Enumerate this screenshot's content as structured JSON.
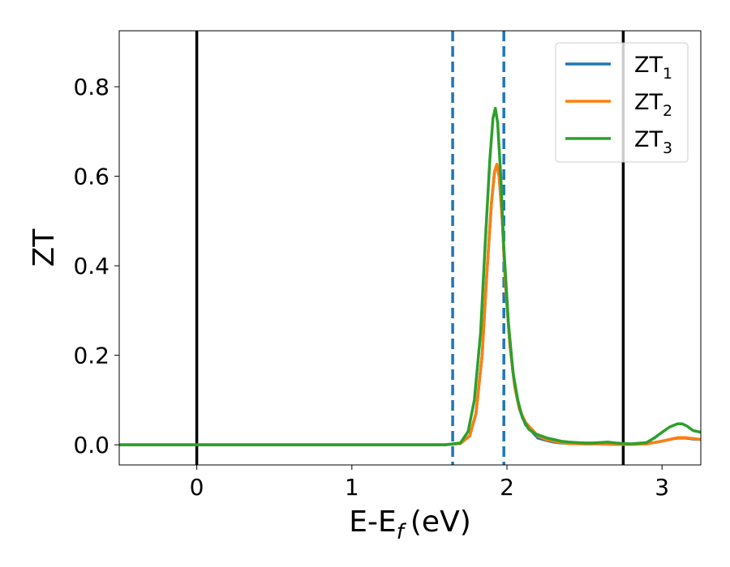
{
  "chart_data": {
    "type": "line",
    "title": "",
    "xlabel": "E-E",
    "xlabel_sub": "f",
    "xlabel_unit": "(eV)",
    "ylabel": "ZT",
    "xlim": [
      -0.5,
      3.25
    ],
    "ylim": [
      -0.045,
      0.925
    ],
    "xticks": [
      0,
      1,
      2,
      3
    ],
    "xtick_labels": [
      "0",
      "1",
      "2",
      "3"
    ],
    "yticks": [
      0.0,
      0.2,
      0.4,
      0.6,
      0.8
    ],
    "ytick_labels": [
      "0.0",
      "0.2",
      "0.4",
      "0.6",
      "0.8"
    ],
    "grid": false,
    "legend_position": "top-right",
    "vlines": [
      {
        "x": 0.0,
        "color": "#000000",
        "style": "solid"
      },
      {
        "x": 2.75,
        "color": "#000000",
        "style": "solid"
      },
      {
        "x": 1.65,
        "color": "#1f77b4",
        "style": "dashed"
      },
      {
        "x": 1.98,
        "color": "#1f77b4",
        "style": "dashed"
      }
    ],
    "series": [
      {
        "name": "ZT",
        "sub": "1",
        "color": "#1f77b4",
        "x": [
          -0.5,
          1.6,
          1.7,
          1.76,
          1.8,
          1.84,
          1.87,
          1.9,
          1.92,
          1.935,
          1.95,
          1.97,
          1.99,
          2.02,
          2.05,
          2.08,
          2.12,
          2.16,
          2.2,
          2.25,
          2.3,
          2.35,
          2.4,
          2.5,
          2.6,
          2.7,
          2.8,
          2.9,
          3.0,
          3.05,
          3.1,
          3.15,
          3.2,
          3.25
        ],
        "y": [
          0.0,
          0.0,
          0.003,
          0.02,
          0.07,
          0.2,
          0.38,
          0.54,
          0.61,
          0.625,
          0.6,
          0.5,
          0.36,
          0.22,
          0.13,
          0.08,
          0.045,
          0.03,
          0.015,
          0.01,
          0.006,
          0.004,
          0.003,
          0.002,
          0.002,
          0.001,
          0.001,
          0.002,
          0.008,
          0.012,
          0.015,
          0.015,
          0.013,
          0.012
        ]
      },
      {
        "name": "ZT",
        "sub": "2",
        "color": "#ff7f0e",
        "x": [
          -0.5,
          1.6,
          1.7,
          1.76,
          1.8,
          1.84,
          1.87,
          1.9,
          1.92,
          1.935,
          1.95,
          1.97,
          1.99,
          2.02,
          2.05,
          2.08,
          2.12,
          2.16,
          2.2,
          2.25,
          2.3,
          2.35,
          2.4,
          2.5,
          2.6,
          2.7,
          2.8,
          2.9,
          3.0,
          3.05,
          3.1,
          3.15,
          3.2,
          3.25
        ],
        "y": [
          0.0,
          0.0,
          0.003,
          0.02,
          0.07,
          0.2,
          0.38,
          0.54,
          0.61,
          0.627,
          0.6,
          0.5,
          0.36,
          0.22,
          0.13,
          0.08,
          0.05,
          0.035,
          0.02,
          0.012,
          0.008,
          0.005,
          0.003,
          0.002,
          0.002,
          0.001,
          0.001,
          0.002,
          0.008,
          0.012,
          0.016,
          0.016,
          0.014,
          0.012
        ]
      },
      {
        "name": "ZT",
        "sub": "3",
        "color": "#2ca02c",
        "x": [
          -0.5,
          1.6,
          1.7,
          1.75,
          1.79,
          1.83,
          1.86,
          1.89,
          1.91,
          1.925,
          1.94,
          1.96,
          1.98,
          2.01,
          2.04,
          2.07,
          2.1,
          2.14,
          2.18,
          2.22,
          2.26,
          2.3,
          2.35,
          2.4,
          2.45,
          2.5,
          2.55,
          2.6,
          2.65,
          2.7,
          2.8,
          2.9,
          2.95,
          3.0,
          3.05,
          3.1,
          3.13,
          3.16,
          3.2,
          3.25
        ],
        "y": [
          0.0,
          0.0,
          0.004,
          0.03,
          0.1,
          0.25,
          0.45,
          0.64,
          0.73,
          0.752,
          0.72,
          0.6,
          0.44,
          0.27,
          0.16,
          0.1,
          0.06,
          0.035,
          0.025,
          0.02,
          0.015,
          0.012,
          0.008,
          0.006,
          0.005,
          0.004,
          0.004,
          0.005,
          0.006,
          0.004,
          0.002,
          0.005,
          0.015,
          0.028,
          0.04,
          0.047,
          0.047,
          0.042,
          0.032,
          0.028
        ]
      }
    ]
  }
}
